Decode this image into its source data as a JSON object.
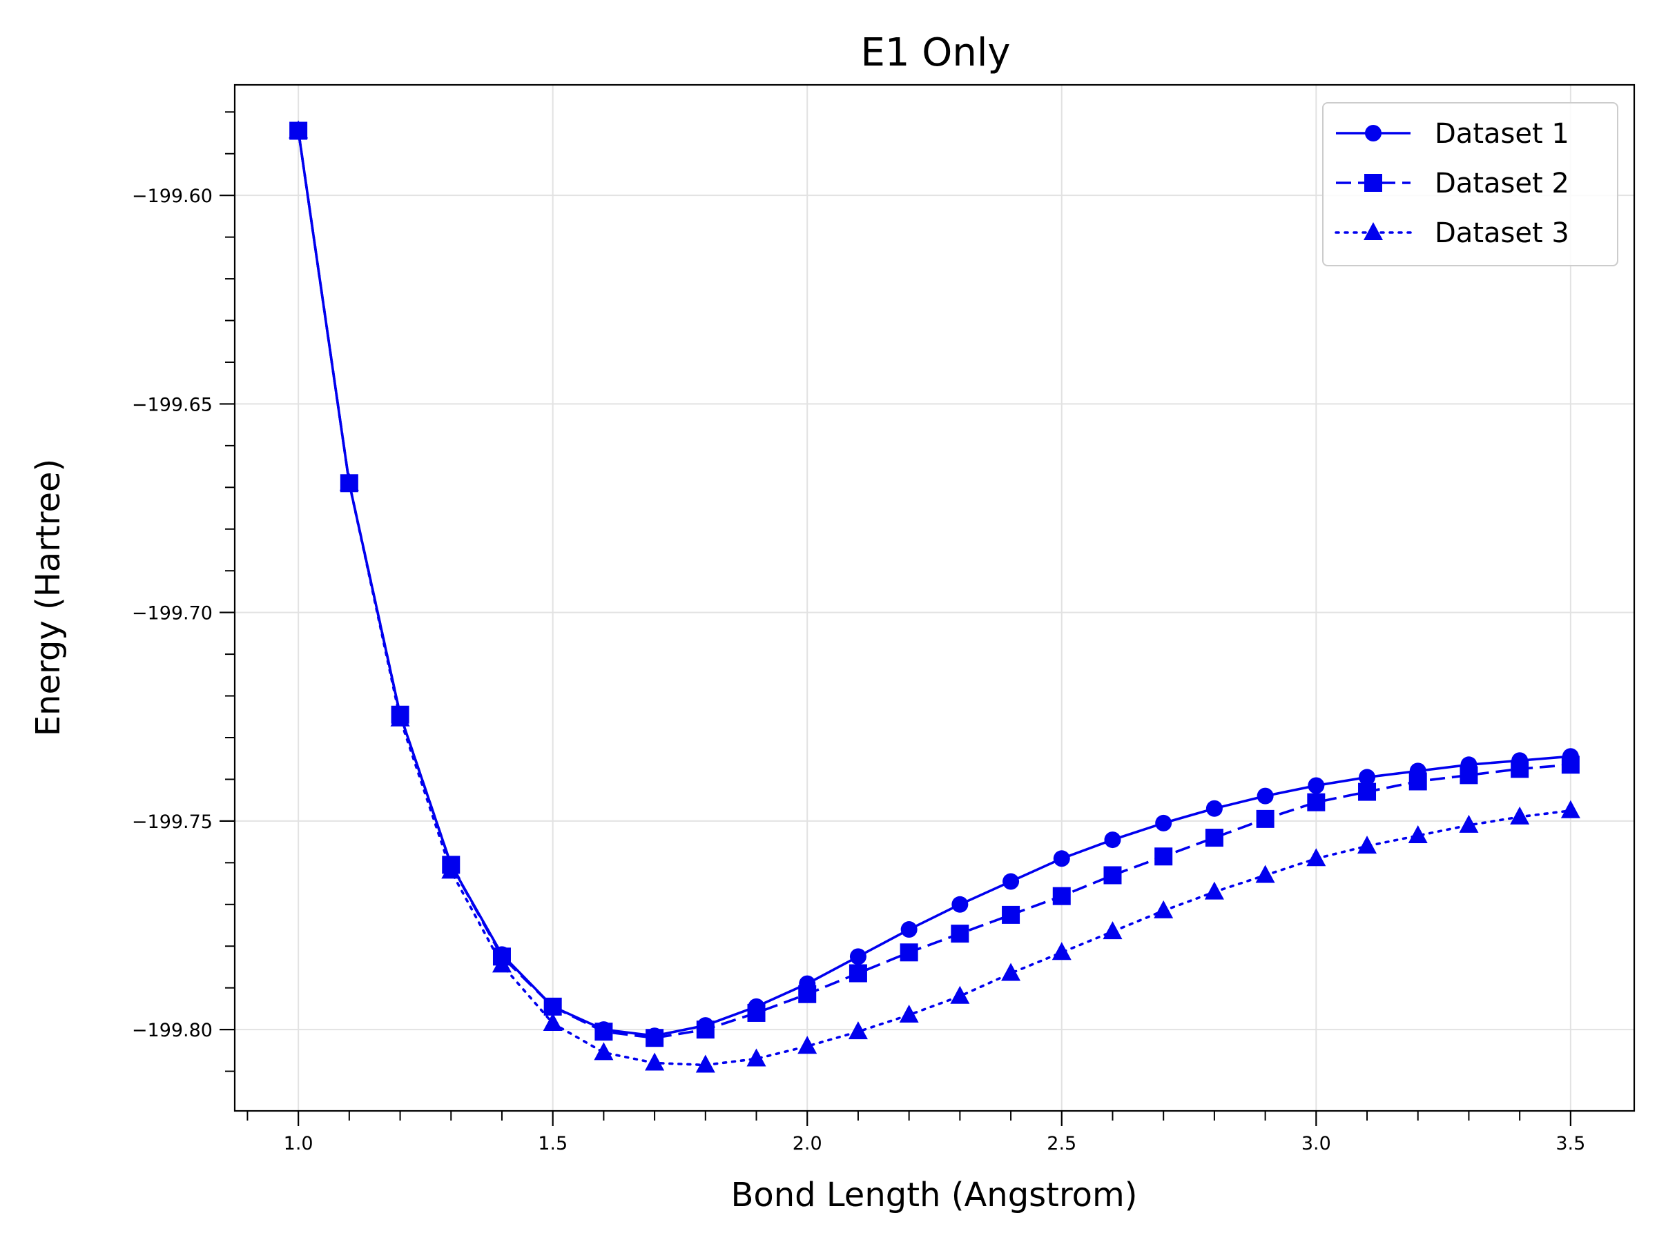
{
  "chart_data": {
    "type": "line",
    "title": "E1 Only",
    "xlabel": "Bond Length (Angstrom)",
    "ylabel": "Energy (Hartree)",
    "xlim": [
      0.875,
      3.625
    ],
    "ylim": [
      -199.8195,
      -199.5735
    ],
    "xticks": [
      1.0,
      1.5,
      2.0,
      2.5,
      3.0,
      3.5
    ],
    "xtick_labels": [
      "1.0",
      "1.5",
      "2.0",
      "2.5",
      "3.0",
      "3.5"
    ],
    "yticks": [
      -199.8,
      -199.75,
      -199.7,
      -199.65,
      -199.6
    ],
    "ytick_labels": [
      "−199.80",
      "−199.75",
      "−199.70",
      "−199.65",
      "−199.60"
    ],
    "grid": true,
    "legend_position": "top-right",
    "color": "#0000ee",
    "x": [
      1.0,
      1.1,
      1.2,
      1.3,
      1.4,
      1.5,
      1.6,
      1.7,
      1.8,
      1.9,
      2.0,
      2.1,
      2.2,
      2.3,
      2.4,
      2.5,
      2.6,
      2.7,
      2.8,
      2.9,
      3.0,
      3.1,
      3.2,
      3.3,
      3.4,
      3.5
    ],
    "series": [
      {
        "name": "Dataset 1",
        "marker": "circle",
        "linestyle": "solid",
        "values": [
          -199.5845,
          -199.669,
          -199.7245,
          -199.7605,
          -199.782,
          -199.7945,
          -199.8,
          -199.8015,
          -199.799,
          -199.7945,
          -199.789,
          -199.7825,
          -199.776,
          -199.77,
          -199.7645,
          -199.759,
          -199.7545,
          -199.7505,
          -199.747,
          -199.744,
          -199.7415,
          -199.7395,
          -199.738,
          -199.7365,
          -199.7355,
          -199.7345
        ]
      },
      {
        "name": "Dataset 2",
        "marker": "square",
        "linestyle": "dashed",
        "values": [
          -199.5845,
          -199.669,
          -199.7245,
          -199.7605,
          -199.7825,
          -199.7945,
          -199.8005,
          -199.802,
          -199.8,
          -199.796,
          -199.7915,
          -199.7865,
          -199.7815,
          -199.777,
          -199.7725,
          -199.768,
          -199.763,
          -199.7585,
          -199.754,
          -199.7495,
          -199.7455,
          -199.743,
          -199.7405,
          -199.739,
          -199.7375,
          -199.7365
        ]
      },
      {
        "name": "Dataset 3",
        "marker": "triangle",
        "linestyle": "dotted",
        "values": [
          -199.5845,
          -199.669,
          -199.7255,
          -199.762,
          -199.7845,
          -199.7985,
          -199.8055,
          -199.808,
          -199.8085,
          -199.807,
          -199.804,
          -199.8005,
          -199.7965,
          -199.792,
          -199.7865,
          -199.7815,
          -199.7765,
          -199.7715,
          -199.767,
          -199.763,
          -199.759,
          -199.756,
          -199.7535,
          -199.751,
          -199.749,
          -199.7475
        ]
      }
    ]
  }
}
